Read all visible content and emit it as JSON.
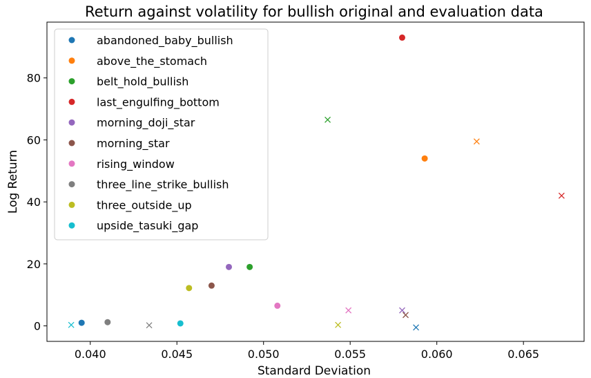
{
  "chart_data": {
    "type": "scatter",
    "title": "Return against volatility for bullish original and evaluation data",
    "xlabel": "Standard Deviation",
    "ylabel": "Log Return",
    "xlim": [
      0.0375,
      0.0685
    ],
    "ylim": [
      -5,
      98
    ],
    "xticks": [
      0.04,
      0.045,
      0.05,
      0.055,
      0.06,
      0.065
    ],
    "xtick_labels": [
      "0.040",
      "0.045",
      "0.050",
      "0.055",
      "0.060",
      "0.065"
    ],
    "yticks": [
      0,
      20,
      40,
      60,
      80
    ],
    "ytick_labels": [
      "0",
      "20",
      "40",
      "60",
      "80"
    ],
    "grid": false,
    "legend_position": "upper-left",
    "marker_legend": {
      "circle": "original",
      "x": "evaluation"
    },
    "series": [
      {
        "name": "abandoned_baby_bullish",
        "color": "#1f77b4",
        "original": {
          "x": 0.0395,
          "y": 1.0
        },
        "evaluation": {
          "x": 0.0588,
          "y": -0.5
        }
      },
      {
        "name": "above_the_stomach",
        "color": "#ff7f0e",
        "original": {
          "x": 0.0593,
          "y": 54.0
        },
        "evaluation": {
          "x": 0.0623,
          "y": 59.5
        }
      },
      {
        "name": "belt_hold_bullish",
        "color": "#2ca02c",
        "original": {
          "x": 0.0492,
          "y": 19.0
        },
        "evaluation": {
          "x": 0.0537,
          "y": 66.5
        }
      },
      {
        "name": "last_engulfing_bottom",
        "color": "#d62728",
        "original": {
          "x": 0.058,
          "y": 93.0
        },
        "evaluation": {
          "x": 0.0672,
          "y": 42.0
        }
      },
      {
        "name": "morning_doji_star",
        "color": "#9467bd",
        "original": {
          "x": 0.048,
          "y": 19.0
        },
        "evaluation": {
          "x": 0.058,
          "y": 5.0
        }
      },
      {
        "name": "morning_star",
        "color": "#8c564b",
        "original": {
          "x": 0.047,
          "y": 13.0
        },
        "evaluation": {
          "x": 0.0582,
          "y": 3.5
        }
      },
      {
        "name": "rising_window",
        "color": "#e377c2",
        "original": {
          "x": 0.0508,
          "y": 6.5
        },
        "evaluation": {
          "x": 0.0549,
          "y": 5.0
        }
      },
      {
        "name": "three_line_strike_bullish",
        "color": "#7f7f7f",
        "original": {
          "x": 0.041,
          "y": 1.2
        },
        "evaluation": {
          "x": 0.0434,
          "y": 0.2
        }
      },
      {
        "name": "three_outside_up",
        "color": "#bcbd22",
        "original": {
          "x": 0.0457,
          "y": 12.2
        },
        "evaluation": {
          "x": 0.0543,
          "y": 0.3
        }
      },
      {
        "name": "upside_tasuki_gap",
        "color": "#17becf",
        "original": {
          "x": 0.0452,
          "y": 0.8
        },
        "evaluation": {
          "x": 0.0389,
          "y": 0.3
        }
      }
    ]
  }
}
